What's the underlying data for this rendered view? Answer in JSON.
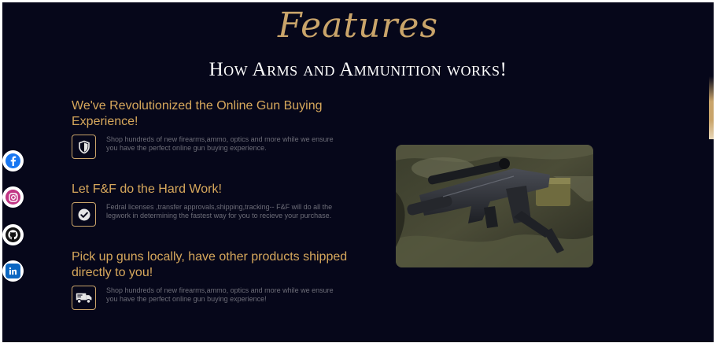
{
  "header": {
    "script_title": "Features",
    "subtitle": "How Arms and Ammunition works!"
  },
  "features": [
    {
      "title": "We've Revolutionized the Online Gun Buying Experience!",
      "description": "Shop hundreds of new firearms,ammo, optics and more while we ensure you have the perfect online gun buying experience.",
      "icon": "shield-icon"
    },
    {
      "title": "Let F&F do the Hard Work!",
      "description": "Fedral licenses ,transfer approvals,shipping,tracking-- F&F will do all the legwork in determining the fastest way for you to recieve your purchase.",
      "icon": "check-circle-icon"
    },
    {
      "title": "Pick up guns locally, have other products shipped directly to you!",
      "description": "Shop hundreds of new firearms,ammo, optics and more while we ensure you have the perfect online gun buying experience!",
      "icon": "shipping-truck-icon"
    }
  ],
  "social": [
    {
      "name": "facebook-icon",
      "color": "#1877f2"
    },
    {
      "name": "instagram-icon",
      "color": "#c13584"
    },
    {
      "name": "github-icon",
      "color": "#111111"
    },
    {
      "name": "linkedin-icon",
      "color": "#0a66c2"
    }
  ],
  "image": {
    "subject": "rifle-photo"
  },
  "colors": {
    "background": "#06071a",
    "accent": "#c9a46a",
    "heading": "#d7a85c"
  }
}
